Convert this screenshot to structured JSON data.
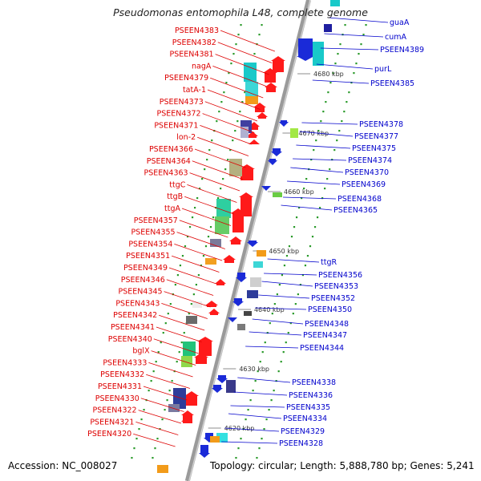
{
  "title": "Pseudomonas entomophila L48, complete genome",
  "footer": {
    "accession": "Accession: NC_008027",
    "summary": "Topology: circular; Length: 5,888,780 bp; Genes: 5,241"
  },
  "colors": {
    "left_label": "#dd0000",
    "right_label": "#0000cc",
    "backbone": "#888888",
    "tick": "#229922"
  },
  "left_labels": [
    "PSEEN4383",
    "PSEEN4382",
    "PSEEN4381",
    "nagA",
    "PSEEN4379",
    "tatA-1",
    "PSEEN4373",
    "PSEEN4372",
    "PSEEN4371",
    "lon-2",
    "PSEEN4366",
    "PSEEN4364",
    "PSEEN4363",
    "ttgC",
    "ttgB",
    "ttgA",
    "PSEEN4357",
    "PSEEN4355",
    "PSEEN4354",
    "PSEEN4351",
    "PSEEN4349",
    "PSEEN4346",
    "PSEEN4345",
    "PSEEN4343",
    "PSEEN4342",
    "PSEEN4341",
    "PSEEN4340",
    "bglX",
    "PSEEN4333",
    "PSEEN4332",
    "PSEEN4331",
    "PSEEN4330",
    "PSEEN4322",
    "PSEEN4321",
    "PSEEN4320"
  ],
  "right_labels": [
    "guaA",
    "cumA",
    "PSEEN4389",
    "purL",
    "PSEEN4385",
    "PSEEN4378",
    "PSEEN4377",
    "PSEEN4375",
    "PSEEN4374",
    "PSEEN4370",
    "PSEEN4369",
    "PSEEN4368",
    "PSEEN4365",
    "ttgR",
    "PSEEN4356",
    "PSEEN4353",
    "PSEEN4352",
    "PSEEN4350",
    "PSEEN4348",
    "PSEEN4347",
    "PSEEN4344",
    "PSEEN4338",
    "PSEEN4336",
    "PSEEN4335",
    "PSEEN4334",
    "PSEEN4329",
    "PSEEN4328"
  ],
  "kbp_labels": [
    "4680 kbp",
    "4670 kbp",
    "4660 kbp",
    "4650 kbp",
    "4640 kbp",
    "4630 kbp",
    "4620 kbp"
  ]
}
